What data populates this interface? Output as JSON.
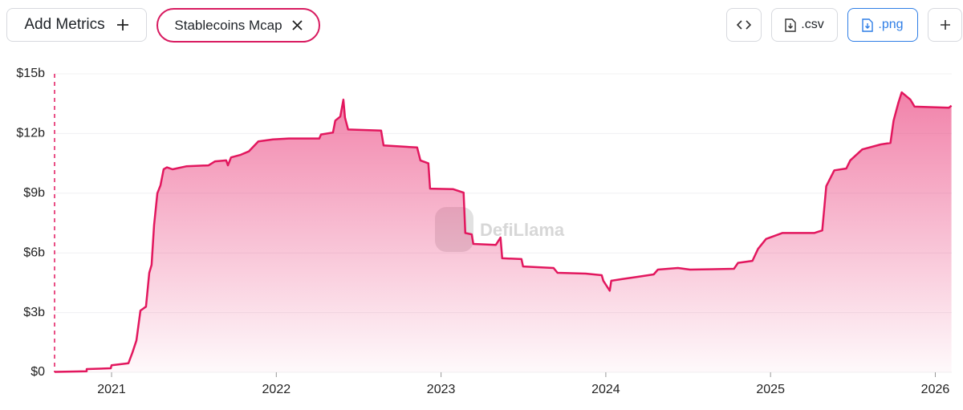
{
  "toolbar": {
    "add_button": "Add Metrics",
    "metric_chip": "Stablecoins Mcap",
    "csv_button": ".csv",
    "png_button": ".png"
  },
  "chart_data": {
    "type": "area",
    "watermark": "DefiLlama",
    "x": [
      2020.654,
      2020.849,
      2020.849,
      2020.995,
      2021.0,
      2021.102,
      2021.127,
      2021.151,
      2021.175,
      2021.209,
      2021.229,
      2021.243,
      2021.258,
      2021.278,
      2021.297,
      2021.316,
      2021.336,
      2021.37,
      2021.453,
      2021.589,
      2021.628,
      2021.696,
      2021.706,
      2021.725,
      2021.784,
      2021.833,
      2021.891,
      2021.979,
      2022.076,
      2022.261,
      2022.271,
      2022.344,
      2022.358,
      2022.388,
      2022.407,
      2022.417,
      2022.436,
      2022.636,
      2022.651,
      2022.855,
      2022.875,
      2022.923,
      2022.933,
      2023.074,
      2023.137,
      2023.147,
      2023.186,
      2023.196,
      2023.332,
      2023.361,
      2023.371,
      2023.488,
      2023.498,
      2023.683,
      2023.707,
      2023.878,
      2023.975,
      2023.985,
      2024.024,
      2024.033,
      2024.097,
      2024.194,
      2024.291,
      2024.316,
      2024.438,
      2024.511,
      2024.778,
      2024.803,
      2024.89,
      2024.924,
      2024.973,
      2025.071,
      2025.265,
      2025.314,
      2025.338,
      2025.387,
      2025.46,
      2025.484,
      2025.557,
      2025.669,
      2025.728,
      2025.747,
      2025.776,
      2025.796,
      2025.849,
      2025.874,
      2026.083,
      2026.098
    ],
    "values": [
      0.02,
      0.05,
      0.16,
      0.2,
      0.35,
      0.45,
      1.0,
      1.6,
      3.1,
      3.3,
      5.0,
      5.4,
      7.4,
      9.0,
      9.4,
      10.2,
      10.3,
      10.2,
      10.35,
      10.4,
      10.6,
      10.65,
      10.4,
      10.8,
      10.93,
      11.1,
      11.6,
      11.7,
      11.75,
      11.75,
      11.95,
      12.05,
      12.65,
      12.85,
      13.7,
      12.8,
      12.2,
      12.15,
      11.4,
      11.3,
      10.65,
      10.5,
      9.23,
      9.2,
      9.03,
      7.0,
      6.93,
      6.45,
      6.4,
      6.77,
      5.73,
      5.69,
      5.32,
      5.24,
      5.0,
      4.96,
      4.88,
      4.6,
      4.1,
      4.6,
      4.68,
      4.8,
      4.92,
      5.16,
      5.24,
      5.16,
      5.2,
      5.5,
      5.6,
      6.2,
      6.7,
      7.0,
      7.0,
      7.13,
      9.35,
      10.15,
      10.24,
      10.65,
      11.2,
      11.45,
      11.53,
      12.65,
      13.55,
      14.07,
      13.7,
      13.35,
      13.3,
      13.4
    ],
    "color": "#e2175e",
    "xlim": [
      2020.654,
      2026.1
    ],
    "xticks": [
      2021,
      2022,
      2023,
      2024,
      2025,
      2026
    ],
    "ylim": [
      0,
      15
    ],
    "yticks": [
      {
        "value": 0,
        "label": "$0"
      },
      {
        "value": 3,
        "label": "$3b"
      },
      {
        "value": 6,
        "label": "$6b"
      },
      {
        "value": 9,
        "label": "$9b"
      },
      {
        "value": 12,
        "label": "$12b"
      },
      {
        "value": 15,
        "label": "$15b"
      }
    ],
    "grid": true
  }
}
